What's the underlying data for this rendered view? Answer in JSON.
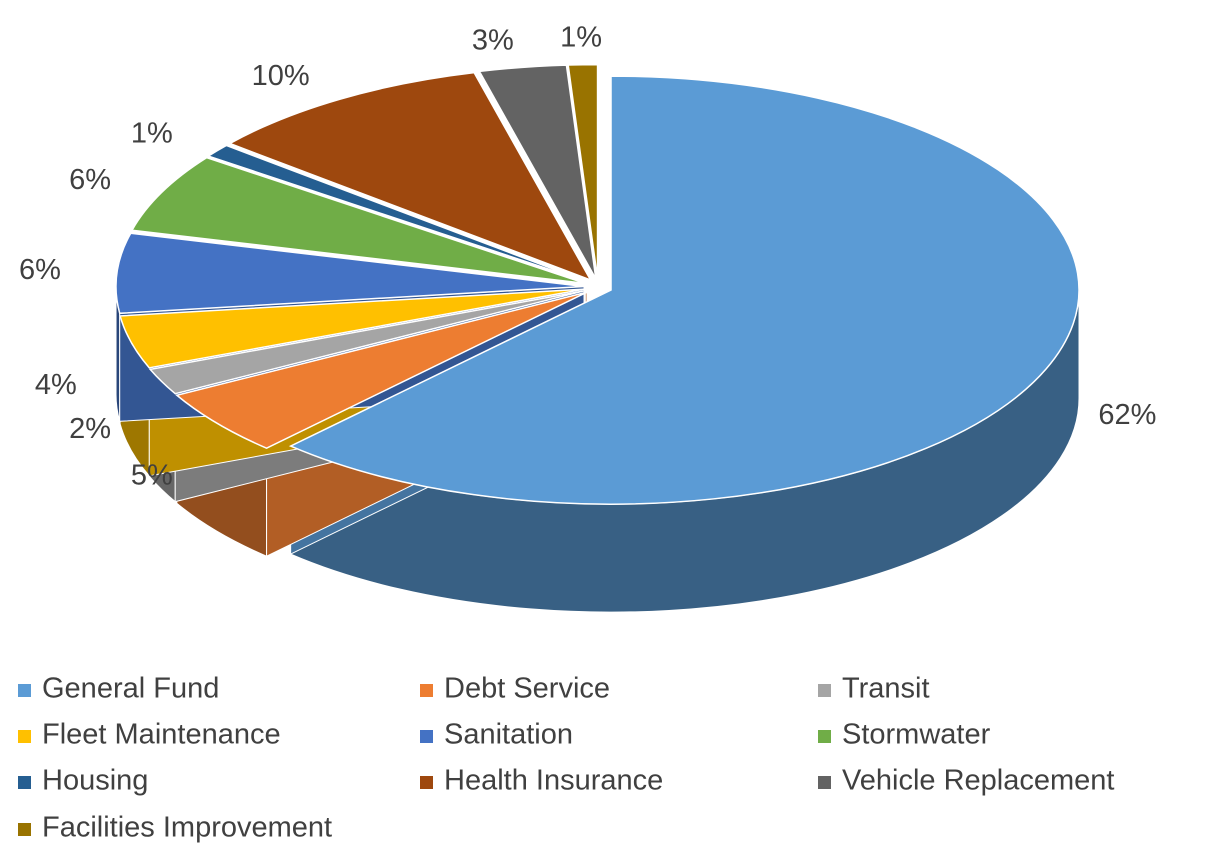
{
  "chart_data": {
    "type": "pie3d",
    "categories": [
      "General Fund",
      "Debt Service",
      "Transit",
      "Fleet Maintenance",
      "Sanitation",
      "Stormwater",
      "Housing",
      "Health Insurance",
      "Vehicle Replacement",
      "Facilities Improvement"
    ],
    "values": [
      62,
      5,
      2,
      4,
      6,
      6,
      1,
      10,
      3,
      1
    ],
    "value_labels": [
      "62%",
      "5%",
      "2%",
      "4%",
      "6%",
      "6%",
      "1%",
      "10%",
      "3%",
      "1%"
    ],
    "colors": [
      "#5b9bd5",
      "#ed7d31",
      "#a5a5a5",
      "#ffc000",
      "#4472c4",
      "#70ad47",
      "#255e91",
      "#9e480e",
      "#636363",
      "#997300"
    ],
    "legend": "bottom"
  }
}
